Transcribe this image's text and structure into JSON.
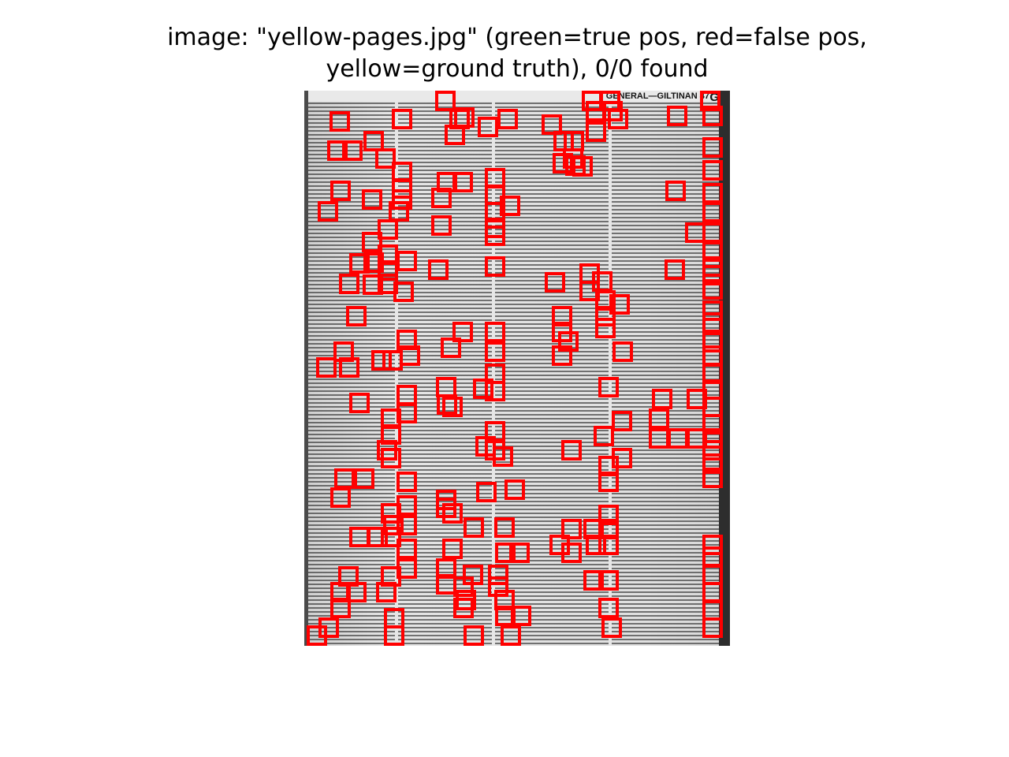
{
  "figure": {
    "title_line1": "image: \"yellow-pages.jpg\" (green=true pos, red=false pos,",
    "title_line2": "yellow=ground truth), 0/0 found",
    "box_color": "#ff0000"
  },
  "scan": {
    "page_heading": "GENERAL—GILTINAN",
    "page_number": "47",
    "tab_letter": "G"
  }
}
